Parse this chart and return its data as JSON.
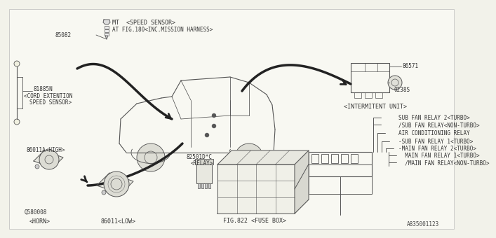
{
  "bg_color": "#f2f2ea",
  "line_color": "#555555",
  "diagram_id": "A835001123",
  "relay_labels": [
    [
      "SUB FAN RELAY 2〈TURBO〉",
      0.0
    ],
    [
      "/SUB FAN RELAY〈NON-TURBO〉",
      0.0
    ],
    [
      "AIR CONDITIONING RELAY",
      0.012
    ],
    [
      "-SUB FAN RELAY 1〈TURBO〉",
      0.024
    ],
    [
      "-MAIN FAN RELAY 2〈TURBO〉",
      0.035
    ],
    [
      "  MAIN FAN RELAY 1〈TURBO〉",
      0.046
    ],
    [
      "  /MAIN FAN RELAY〈NON-TURBO〉",
      0.055
    ]
  ]
}
